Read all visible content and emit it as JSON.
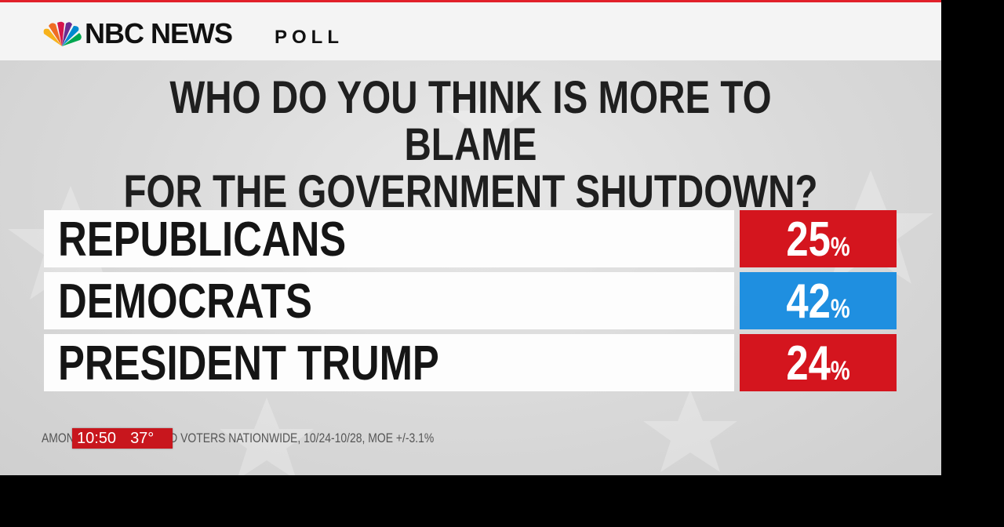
{
  "header": {
    "brand": "NBC NEWS",
    "label": "POLL"
  },
  "question": {
    "line1": "WHO DO YOU THINK IS MORE TO BLAME",
    "line2": "FOR THE GOVERNMENT SHUTDOWN?"
  },
  "chart_data": {
    "type": "table",
    "title": "WHO DO YOU THINK IS MORE TO BLAME FOR THE GOVERNMENT SHUTDOWN?",
    "categories": [
      "REPUBLICANS",
      "DEMOCRATS",
      "PRESIDENT TRUMP"
    ],
    "values": [
      25,
      42,
      24
    ],
    "unit": "%",
    "colors": [
      "#d4151e",
      "#1f8fe0",
      "#d4151e"
    ]
  },
  "rows": [
    {
      "label": "REPUBLICANS",
      "value": "25",
      "unit": "%",
      "color": "#d4151e"
    },
    {
      "label": "DEMOCRATS",
      "value": "42",
      "unit": "%",
      "color": "#1f8fe0"
    },
    {
      "label": "PRESIDENT TRUMP",
      "value": "24",
      "unit": "%",
      "color": "#d4151e"
    }
  ],
  "footnote": {
    "left": "AMON",
    "right": "D VOTERS NATIONWIDE, 10/24-10/28, MOE +/-3.1%"
  },
  "ticker": {
    "time": "10:50",
    "temp": "37°"
  },
  "colors": {
    "republican": "#d4151e",
    "democrat": "#1f8fe0",
    "accent_line": "#e1202a"
  }
}
